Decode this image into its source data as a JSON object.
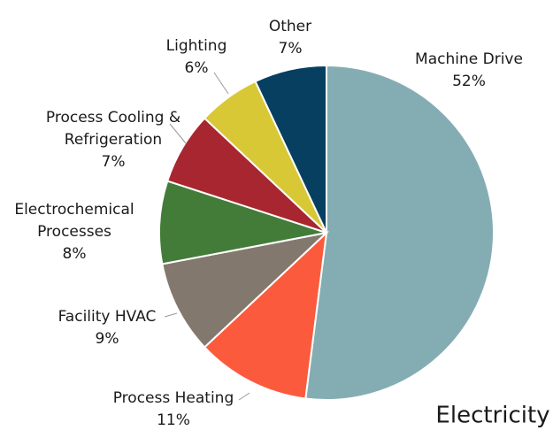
{
  "chart_data": {
    "type": "pie",
    "title": "Electricity",
    "categories": [
      [
        "Machine Drive"
      ],
      [
        "Process Heating"
      ],
      [
        "Facility HVAC"
      ],
      [
        "Electrochemical",
        "Processes"
      ],
      [
        "Process Cooling &",
        "Refrigeration"
      ],
      [
        "Lighting"
      ],
      [
        "Other"
      ]
    ],
    "values": [
      52,
      11,
      9,
      8,
      7,
      6,
      7
    ],
    "value_labels": [
      "52%",
      "11%",
      "9%",
      "8%",
      "7%",
      "6%",
      "7%"
    ],
    "colors": [
      "#84adb3",
      "#fb5b3c",
      "#83786e",
      "#437c38",
      "#a8262f",
      "#d8c836",
      "#073f60"
    ]
  }
}
